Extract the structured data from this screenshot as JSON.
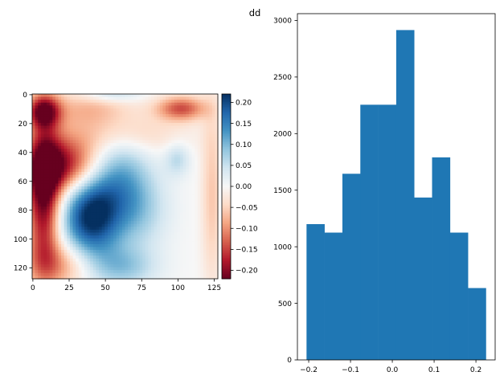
{
  "figure": {
    "title": "dd"
  },
  "chart_data": [
    {
      "type": "heatmap",
      "x_ticks": [
        0,
        25,
        50,
        75,
        100,
        125
      ],
      "y_ticks": [
        0,
        20,
        40,
        60,
        80,
        100,
        120
      ],
      "xlim": [
        -0.5,
        127.5
      ],
      "ylim": [
        127.5,
        -0.5
      ],
      "colormap": "RdBu",
      "vmin": -0.22,
      "vmax": 0.22,
      "colorbar_ticks": [
        "0.20",
        "0.15",
        "0.10",
        "0.05",
        "0.00",
        "−0.05",
        "−0.10",
        "−0.15",
        "−0.20"
      ],
      "colorbar_values": [
        0.2,
        0.15,
        0.1,
        0.05,
        0.0,
        -0.05,
        -0.1,
        -0.15,
        -0.2
      ],
      "features": [
        {
          "x": 8,
          "y": 70,
          "sx": 8,
          "sy": 35,
          "value": -0.22
        },
        {
          "x": 22,
          "y": 50,
          "sx": 18,
          "sy": 14,
          "value": -0.2
        },
        {
          "x": 8,
          "y": 12,
          "sx": 8,
          "sy": 8,
          "value": -0.18
        },
        {
          "x": 40,
          "y": 10,
          "sx": 22,
          "sy": 9,
          "value": -0.07
        },
        {
          "x": 60,
          "y": 28,
          "sx": 30,
          "sy": 10,
          "value": -0.06
        },
        {
          "x": 103,
          "y": 10,
          "sx": 12,
          "sy": 6,
          "value": -0.14
        },
        {
          "x": 124,
          "y": 70,
          "sx": 5,
          "sy": 45,
          "value": -0.06
        },
        {
          "x": 20,
          "y": 118,
          "sx": 18,
          "sy": 12,
          "value": -0.1
        },
        {
          "x": 55,
          "y": 0,
          "sx": 14,
          "sy": 4,
          "value": 0.06
        },
        {
          "x": 40,
          "y": 85,
          "sx": 14,
          "sy": 22,
          "value": 0.22
        },
        {
          "x": 60,
          "y": 60,
          "sx": 14,
          "sy": 24,
          "value": 0.1
        },
        {
          "x": 75,
          "y": 80,
          "sx": 14,
          "sy": 20,
          "value": 0.06
        },
        {
          "x": 100,
          "y": 45,
          "sx": 6,
          "sy": 8,
          "value": 0.06
        },
        {
          "x": 62,
          "y": 120,
          "sx": 16,
          "sy": 10,
          "value": 0.08
        }
      ]
    },
    {
      "type": "bar",
      "title": "",
      "xlabel": "",
      "ylabel": "",
      "bin_edges": [
        -0.2052,
        -0.1623,
        -0.1194,
        -0.0765,
        -0.0336,
        0.0093,
        0.0522,
        0.0951,
        0.138,
        0.1809,
        0.2238
      ],
      "values": [
        1200,
        1125,
        1645,
        2255,
        2255,
        2915,
        1435,
        1790,
        1125,
        635
      ],
      "xlim": [
        -0.227,
        0.246
      ],
      "ylim": [
        0,
        3060
      ],
      "x_ticks": [
        -0.2,
        -0.1,
        0.0,
        0.1,
        0.2
      ],
      "x_tick_labels": [
        "−0.2",
        "−0.1",
        "0.0",
        "0.1",
        "0.2"
      ],
      "y_ticks": [
        0,
        500,
        1000,
        1500,
        2000,
        2500,
        3000
      ],
      "y_tick_labels": [
        "0",
        "500",
        "1000",
        "1500",
        "2000",
        "2500",
        "3000"
      ],
      "bar_color": "#1f77b4",
      "grid": false
    }
  ]
}
